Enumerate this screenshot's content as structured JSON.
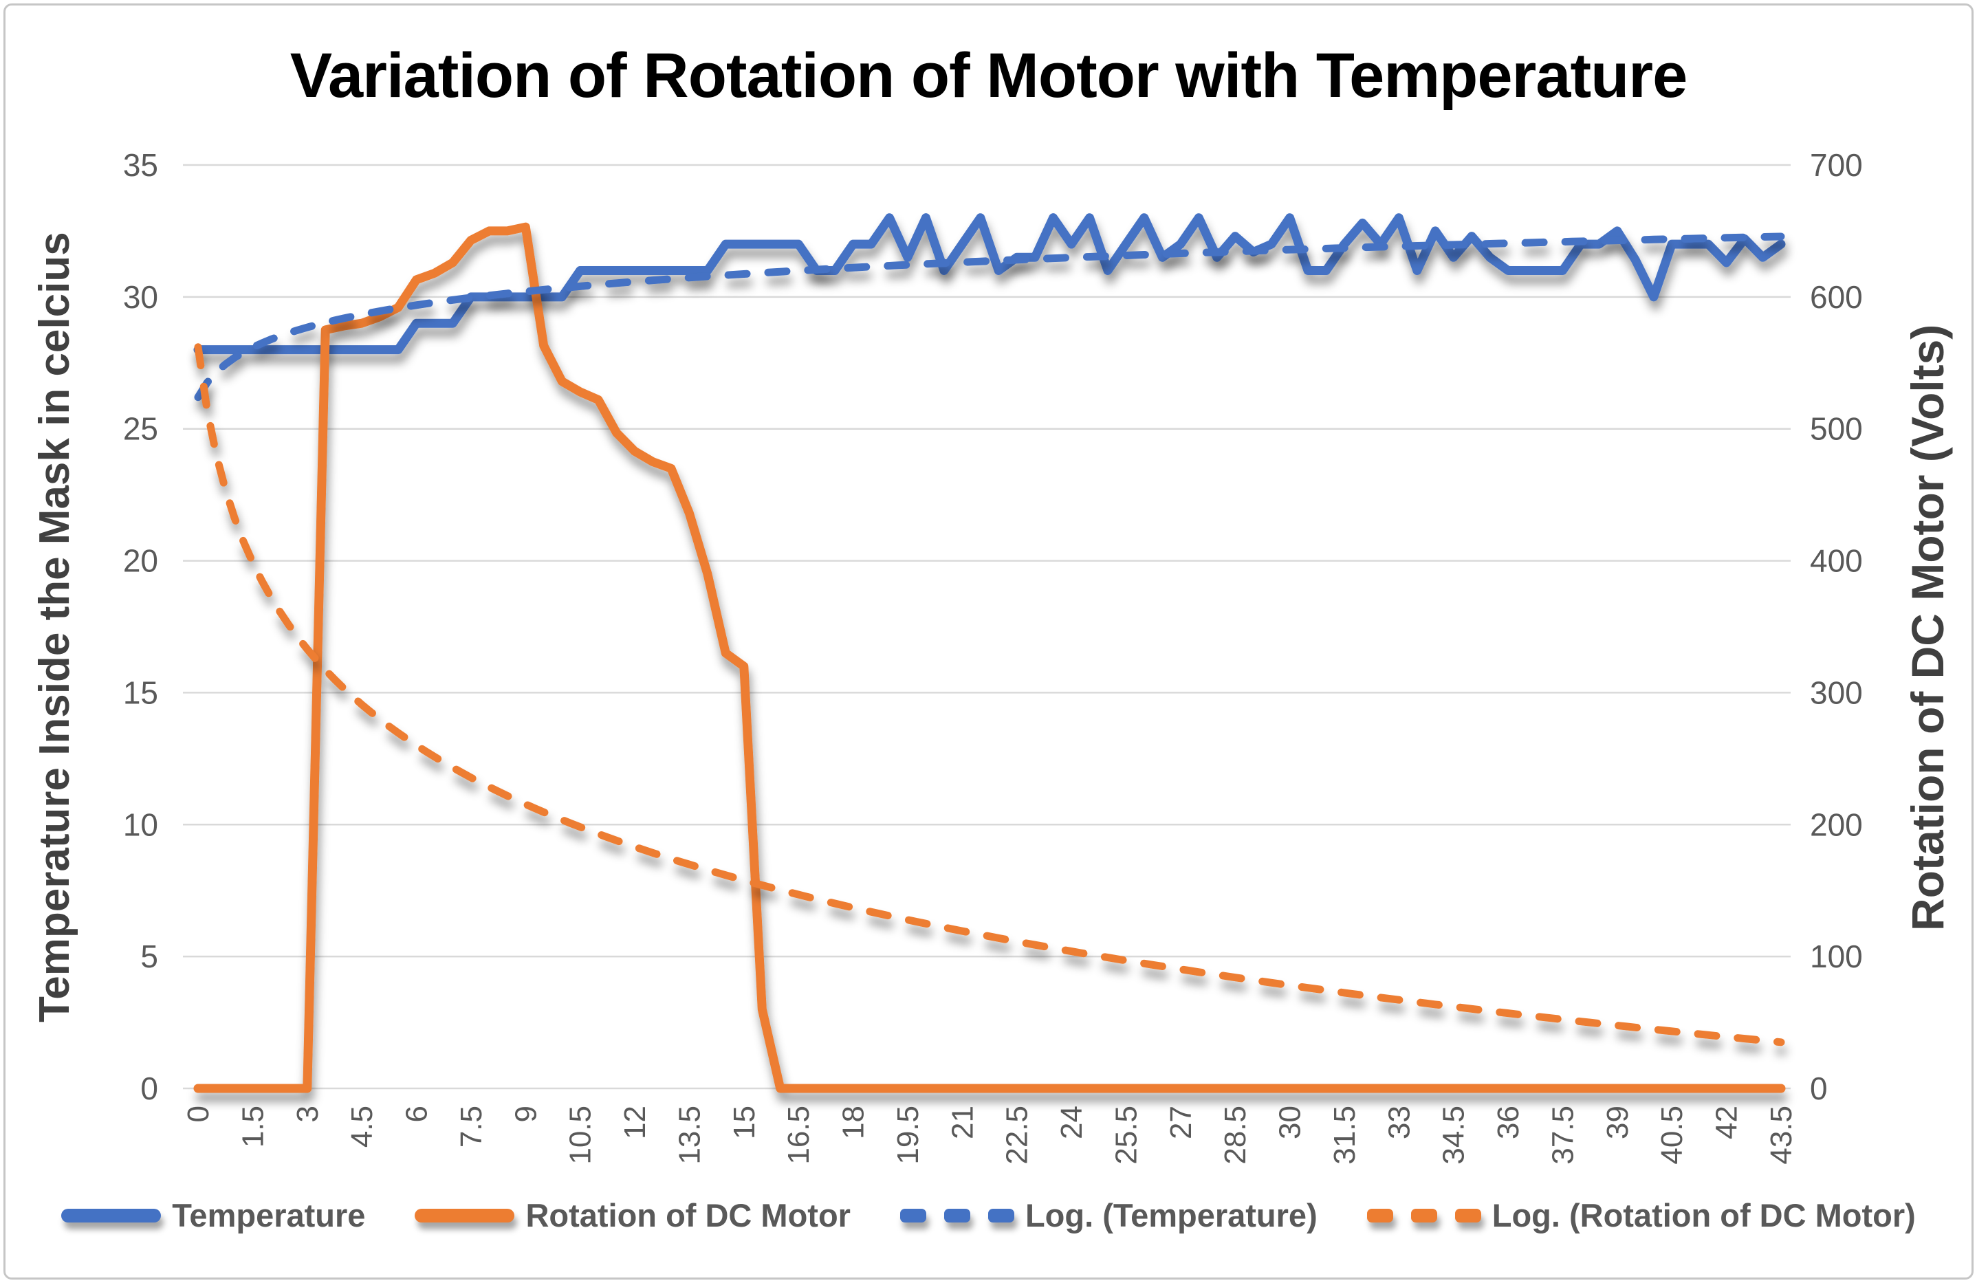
{
  "chart_data": {
    "type": "line",
    "title": "Variation of Rotation of Motor with Temperature",
    "grid": "horizontal",
    "legend_position": "bottom",
    "x_axis": {
      "min": 0,
      "max": 43.5,
      "label_step": 1.5,
      "tick_labels": [
        "0",
        "1.5",
        "3",
        "4.5",
        "6",
        "7.5",
        "9",
        "10.5",
        "12",
        "13.5",
        "15",
        "16.5",
        "18",
        "19.5",
        "21",
        "22.5",
        "24",
        "25.5",
        "27",
        "28.5",
        "30",
        "31.5",
        "33",
        "34.5",
        "36",
        "37.5",
        "39",
        "40.5",
        "42",
        "43.5"
      ]
    },
    "y_axis_left": {
      "title": "Temperature Inside the Mask in celcius",
      "range": [
        0,
        35
      ],
      "ticks": [
        0,
        5,
        10,
        15,
        20,
        25,
        30,
        35
      ]
    },
    "y_axis_right": {
      "title": "Rotation of DC Motor (Volts)",
      "range": [
        0,
        700
      ],
      "ticks": [
        0,
        100,
        200,
        300,
        400,
        500,
        600,
        700
      ]
    },
    "colors": {
      "temperature": "#4472C4",
      "rotation": "#ED7D31",
      "gridline": "#D9D9D9",
      "tick_label": "#595959",
      "axis_title": "#404040",
      "title": "#000000"
    },
    "series": [
      {
        "name": "Temperature",
        "axis": "left",
        "color": "#4472C4",
        "style": "solid",
        "x_start": 0,
        "x_step": 0.5,
        "values": [
          28,
          28,
          28,
          28,
          28,
          28,
          28,
          28,
          28,
          28,
          28,
          28,
          29,
          29,
          29,
          30,
          30,
          30,
          30,
          30,
          30,
          31,
          31,
          31,
          31,
          31,
          31,
          31,
          31,
          32,
          32,
          32,
          32,
          32,
          31,
          31,
          32,
          32,
          33,
          31.5,
          33,
          31,
          32,
          33,
          31,
          31.5,
          31.5,
          33,
          32,
          33,
          31,
          32,
          33,
          31.5,
          32,
          33,
          31.5,
          32.3,
          31.7,
          32,
          33,
          31,
          31,
          32,
          32.8,
          32,
          33,
          31,
          32.5,
          31.5,
          32.3,
          31.5,
          31,
          31,
          31,
          31,
          32,
          32,
          32.5,
          31.4,
          30,
          32,
          32,
          32,
          31.3,
          32.2,
          31.5,
          32
        ]
      },
      {
        "name": "Rotation of DC Motor",
        "axis": "right",
        "color": "#ED7D31",
        "style": "solid",
        "x_start": 0,
        "x_step": 0.5,
        "values": [
          0,
          0,
          0,
          0,
          0,
          0,
          0,
          575,
          578,
          580,
          585,
          592,
          613,
          618,
          626,
          643,
          650,
          650,
          653,
          563,
          536,
          528,
          522,
          497,
          483,
          475,
          470,
          436,
          390,
          330,
          320,
          60,
          0,
          0,
          0,
          0,
          0,
          0,
          0,
          0,
          0,
          0,
          0,
          0,
          0,
          0,
          0,
          0,
          0,
          0,
          0,
          0,
          0,
          0,
          0,
          0,
          0,
          0,
          0,
          0,
          0,
          0,
          0,
          0,
          0,
          0,
          0,
          0,
          0,
          0,
          0,
          0,
          0,
          0,
          0,
          0,
          0,
          0,
          0,
          0,
          0,
          0,
          0,
          0,
          0,
          0,
          0,
          0
        ]
      },
      {
        "name": "Log. (Temperature)",
        "axis": "left",
        "color": "#4472C4",
        "style": "dashed",
        "trend": {
          "type": "logarithmic",
          "a": 1.36,
          "b": 26.2,
          "formula": "y = 1.36*ln(i) + 26.2, i = point index (t/0.5 + 1)"
        }
      },
      {
        "name": "Log. (Rotation of DC Motor)",
        "axis": "right",
        "color": "#ED7D31",
        "style": "dashed",
        "trend": {
          "type": "logarithmic",
          "a": -117.7,
          "b": 562,
          "formula": "y = -117.7*ln(i) + 562, i = point index (t/0.5 + 1)"
        }
      }
    ]
  }
}
